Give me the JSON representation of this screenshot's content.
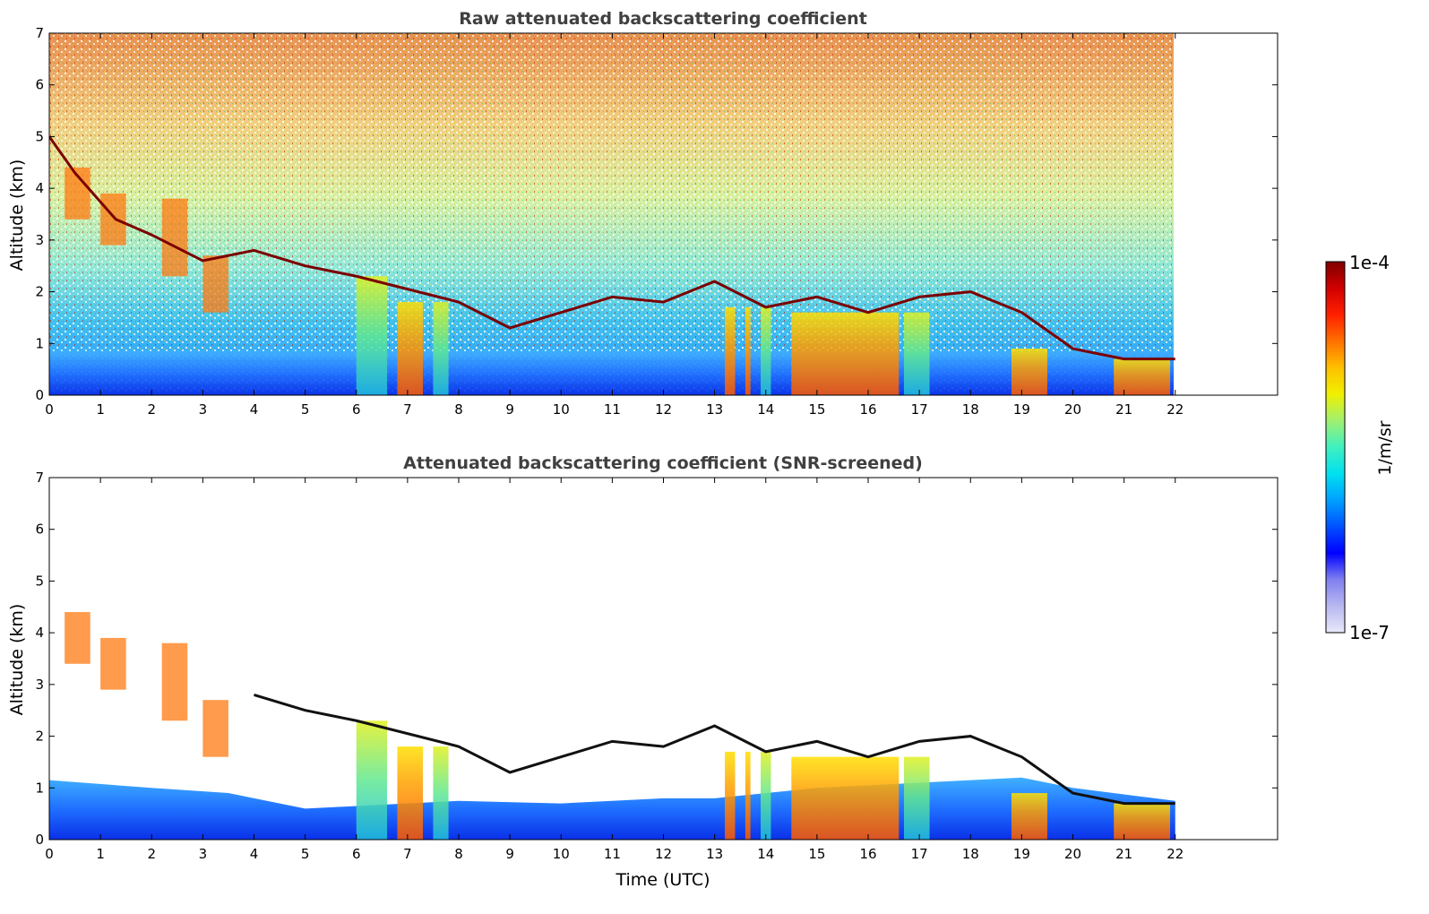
{
  "chart_data": [
    {
      "type": "heatmap",
      "title": "Raw attenuated backscattering coefficient",
      "xlabel": "",
      "ylabel": "Altitude (km)",
      "xlim": [
        0,
        24
      ],
      "ylim": [
        0,
        7
      ],
      "x_ticks": [
        "0",
        "1",
        "2",
        "3",
        "4",
        "5",
        "6",
        "7",
        "8",
        "9",
        "10",
        "11",
        "12",
        "13",
        "14",
        "15",
        "16",
        "17",
        "18",
        "19",
        "20",
        "21",
        "22"
      ],
      "y_ticks": [
        "0",
        "1",
        "2",
        "3",
        "4",
        "5",
        "6",
        "7"
      ],
      "data_extent_x": [
        0,
        22
      ],
      "colormap": "jet",
      "log_scale": true,
      "grid": false,
      "cloud_layer_tops": [
        {
          "time": 0,
          "altitude": 5.0
        },
        {
          "time": 0.5,
          "altitude": 4.3
        },
        {
          "time": 1.3,
          "altitude": 3.4
        },
        {
          "time": 2.0,
          "altitude": 3.1
        },
        {
          "time": 3.0,
          "altitude": 2.6
        },
        {
          "time": 4.0,
          "altitude": 2.8
        },
        {
          "time": 5.0,
          "altitude": 2.5
        },
        {
          "time": 6.0,
          "altitude": 2.3
        },
        {
          "time": 8.0,
          "altitude": 1.8
        },
        {
          "time": 9.0,
          "altitude": 1.3
        },
        {
          "time": 11.0,
          "altitude": 1.9
        },
        {
          "time": 12.0,
          "altitude": 1.8
        },
        {
          "time": 13.0,
          "altitude": 2.2
        },
        {
          "time": 14.0,
          "altitude": 1.7
        },
        {
          "time": 15.0,
          "altitude": 1.9
        },
        {
          "time": 16.0,
          "altitude": 1.6
        },
        {
          "time": 17.0,
          "altitude": 1.9
        },
        {
          "time": 18.0,
          "altitude": 2.0
        },
        {
          "time": 19.0,
          "altitude": 1.6
        },
        {
          "time": 20.0,
          "altitude": 0.9
        },
        {
          "time": 21.0,
          "altitude": 0.7
        },
        {
          "time": 22.0,
          "altitude": 0.7
        }
      ]
    },
    {
      "type": "heatmap",
      "title": "Attenuated backscattering coefficient (SNR-screened)",
      "xlabel": "Time (UTC)",
      "ylabel": "Altitude (km)",
      "xlim": [
        0,
        24
      ],
      "ylim": [
        0,
        7
      ],
      "x_ticks": [
        "0",
        "1",
        "2",
        "3",
        "4",
        "5",
        "6",
        "7",
        "8",
        "9",
        "10",
        "11",
        "12",
        "13",
        "14",
        "15",
        "16",
        "17",
        "18",
        "19",
        "20",
        "21",
        "22"
      ],
      "y_ticks": [
        "0",
        "1",
        "2",
        "3",
        "4",
        "5",
        "6",
        "7"
      ],
      "data_extent_x": [
        0,
        22
      ],
      "colormap": "jet",
      "log_scale": true,
      "grid": false
    }
  ],
  "colorbar": {
    "label": "1/m/sr",
    "min_label": "1e-7",
    "max_label": "1e-4",
    "scale": "log",
    "colors": [
      "#e8e8fa",
      "#b8b8f0",
      "#8080f0",
      "#0000ff",
      "#0050ff",
      "#00a0ff",
      "#00e0f0",
      "#40f0c0",
      "#a0f070",
      "#f0f000",
      "#ffc000",
      "#ff7000",
      "#ff2000",
      "#d00000",
      "#800000"
    ]
  }
}
